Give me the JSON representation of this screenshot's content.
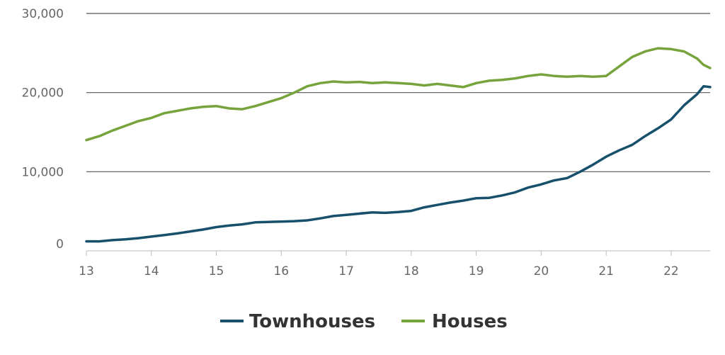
{
  "chart_data": {
    "type": "line",
    "title": "",
    "xlabel": "",
    "ylabel": "",
    "xlim": [
      13,
      22.6
    ],
    "ylim": [
      0,
      30000
    ],
    "grid": true,
    "legend_position": "bottom",
    "x_ticks": [
      {
        "value": 13,
        "label": "13"
      },
      {
        "value": 14,
        "label": "14"
      },
      {
        "value": 15,
        "label": "15"
      },
      {
        "value": 16,
        "label": "16"
      },
      {
        "value": 17,
        "label": "17"
      },
      {
        "value": 18,
        "label": "18"
      },
      {
        "value": 19,
        "label": "19"
      },
      {
        "value": 20,
        "label": "20"
      },
      {
        "value": 21,
        "label": "21"
      },
      {
        "value": 22,
        "label": "22"
      }
    ],
    "y_ticks": [
      {
        "value": 0,
        "label": "0"
      },
      {
        "value": 10000,
        "label": "10,000"
      },
      {
        "value": 20000,
        "label": "20,000"
      },
      {
        "value": 30000,
        "label": "30,000"
      }
    ],
    "series": [
      {
        "name": "Townhouses",
        "color": "#17506b",
        "points": [
          [
            13.0,
            1200
          ],
          [
            13.2,
            1200
          ],
          [
            13.4,
            1350
          ],
          [
            13.6,
            1450
          ],
          [
            13.8,
            1600
          ],
          [
            14.0,
            1800
          ],
          [
            14.2,
            2000
          ],
          [
            14.4,
            2200
          ],
          [
            14.6,
            2450
          ],
          [
            14.8,
            2700
          ],
          [
            15.0,
            3000
          ],
          [
            15.2,
            3200
          ],
          [
            15.4,
            3350
          ],
          [
            15.6,
            3600
          ],
          [
            15.8,
            3650
          ],
          [
            16.0,
            3700
          ],
          [
            16.2,
            3750
          ],
          [
            16.4,
            3850
          ],
          [
            16.6,
            4100
          ],
          [
            16.8,
            4400
          ],
          [
            17.0,
            4550
          ],
          [
            17.2,
            4700
          ],
          [
            17.4,
            4850
          ],
          [
            17.6,
            4800
          ],
          [
            17.8,
            4900
          ],
          [
            18.0,
            5050
          ],
          [
            18.2,
            5500
          ],
          [
            18.4,
            5800
          ],
          [
            18.6,
            6100
          ],
          [
            18.8,
            6350
          ],
          [
            19.0,
            6650
          ],
          [
            19.2,
            6700
          ],
          [
            19.4,
            7000
          ],
          [
            19.6,
            7400
          ],
          [
            19.8,
            8000
          ],
          [
            20.0,
            8400
          ],
          [
            20.2,
            8900
          ],
          [
            20.4,
            9200
          ],
          [
            20.6,
            10000
          ],
          [
            20.8,
            10900
          ],
          [
            21.0,
            11900
          ],
          [
            21.2,
            12700
          ],
          [
            21.4,
            13400
          ],
          [
            21.6,
            14500
          ],
          [
            21.8,
            15500
          ],
          [
            22.0,
            16600
          ],
          [
            22.2,
            18400
          ],
          [
            22.4,
            19800
          ],
          [
            22.5,
            20800
          ],
          [
            22.6,
            20700
          ]
        ]
      },
      {
        "name": "Houses",
        "color": "#76a33b",
        "points": [
          [
            13.0,
            14000
          ],
          [
            13.2,
            14500
          ],
          [
            13.4,
            15200
          ],
          [
            13.6,
            15800
          ],
          [
            13.8,
            16400
          ],
          [
            14.0,
            16800
          ],
          [
            14.2,
            17400
          ],
          [
            14.4,
            17700
          ],
          [
            14.6,
            18000
          ],
          [
            14.8,
            18200
          ],
          [
            15.0,
            18300
          ],
          [
            15.2,
            18000
          ],
          [
            15.4,
            17900
          ],
          [
            15.6,
            18300
          ],
          [
            15.8,
            18800
          ],
          [
            16.0,
            19300
          ],
          [
            16.2,
            20000
          ],
          [
            16.4,
            20800
          ],
          [
            16.6,
            21200
          ],
          [
            16.8,
            21400
          ],
          [
            17.0,
            21300
          ],
          [
            17.2,
            21350
          ],
          [
            17.4,
            21200
          ],
          [
            17.6,
            21300
          ],
          [
            17.8,
            21200
          ],
          [
            18.0,
            21100
          ],
          [
            18.2,
            20900
          ],
          [
            18.4,
            21100
          ],
          [
            18.6,
            20900
          ],
          [
            18.8,
            20700
          ],
          [
            19.0,
            21200
          ],
          [
            19.2,
            21500
          ],
          [
            19.4,
            21600
          ],
          [
            19.6,
            21800
          ],
          [
            19.8,
            22100
          ],
          [
            20.0,
            22300
          ],
          [
            20.2,
            22100
          ],
          [
            20.4,
            22000
          ],
          [
            20.6,
            22100
          ],
          [
            20.8,
            22000
          ],
          [
            21.0,
            22100
          ],
          [
            21.2,
            23300
          ],
          [
            21.4,
            24500
          ],
          [
            21.6,
            25200
          ],
          [
            21.8,
            25600
          ],
          [
            22.0,
            25500
          ],
          [
            22.2,
            25200
          ],
          [
            22.4,
            24300
          ],
          [
            22.5,
            23500
          ],
          [
            22.6,
            23100
          ]
        ]
      }
    ]
  }
}
